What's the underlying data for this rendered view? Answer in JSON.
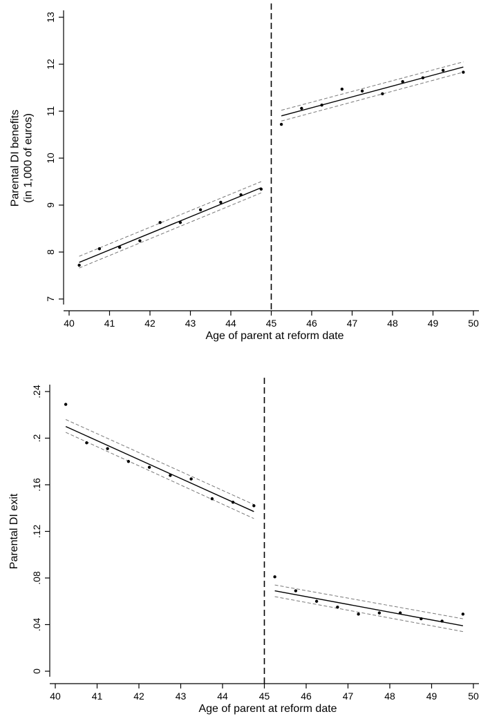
{
  "chart_data": [
    {
      "type": "scatter",
      "title": "",
      "xlabel": "Age of parent at reform date",
      "ylabel": [
        "Parental DI benefits",
        "(in 1,000 of euros)"
      ],
      "xlim": [
        40,
        50
      ],
      "ylim": [
        7,
        13
      ],
      "xticks": [
        40,
        41,
        42,
        43,
        44,
        45,
        46,
        47,
        48,
        49,
        50
      ],
      "xtick_labels": [
        "40",
        "41",
        "42",
        "43",
        "44",
        "45",
        "46",
        "47",
        "48",
        "49",
        "50"
      ],
      "yticks": [
        7,
        8,
        9,
        10,
        11,
        12,
        13
      ],
      "ytick_labels": [
        "7",
        "8",
        "9",
        "10",
        "11",
        "12",
        "13"
      ],
      "grid": false,
      "cutoff": 45,
      "points": {
        "x": [
          40.25,
          40.75,
          41.25,
          41.75,
          42.25,
          42.75,
          43.25,
          43.75,
          44.25,
          44.75,
          45.25,
          45.75,
          46.25,
          46.75,
          47.25,
          47.75,
          48.25,
          48.75,
          49.25,
          49.75
        ],
        "y": [
          7.72,
          8.07,
          8.1,
          8.24,
          8.63,
          8.63,
          8.9,
          9.06,
          9.22,
          9.34,
          10.72,
          11.06,
          11.13,
          11.47,
          11.43,
          11.37,
          11.63,
          11.71,
          11.87,
          11.83
        ]
      },
      "fits": [
        {
          "x": [
            40.25,
            44.75
          ],
          "y": [
            7.78,
            9.37
          ],
          "ci_lower": [
            7.66,
            9.26
          ],
          "ci_upper": [
            7.91,
            9.5
          ]
        },
        {
          "x": [
            45.25,
            49.75
          ],
          "y": [
            10.9,
            11.94
          ],
          "ci_lower": [
            10.79,
            11.83
          ],
          "ci_upper": [
            11.02,
            12.05
          ]
        }
      ]
    },
    {
      "type": "scatter",
      "title": "",
      "xlabel": "Age of parent at reform date",
      "ylabel": [
        "Parental DI exit"
      ],
      "xlim": [
        40,
        50
      ],
      "ylim": [
        0,
        0.24
      ],
      "xticks": [
        40,
        41,
        42,
        43,
        44,
        45,
        46,
        47,
        48,
        49,
        50
      ],
      "xtick_labels": [
        "40",
        "41",
        "42",
        "43",
        "44",
        "45",
        "46",
        "47",
        "48",
        "49",
        "50"
      ],
      "yticks": [
        0,
        0.04,
        0.08,
        0.12,
        0.16,
        0.2,
        0.24
      ],
      "ytick_labels": [
        "0",
        ".04",
        ".08",
        ".12",
        ".16",
        ".2",
        ".24"
      ],
      "grid": false,
      "cutoff": 45,
      "points": {
        "x": [
          40.25,
          40.75,
          41.25,
          41.75,
          42.25,
          42.75,
          43.25,
          43.75,
          44.25,
          44.75,
          45.25,
          45.75,
          46.25,
          46.75,
          47.25,
          47.75,
          48.25,
          48.75,
          49.25,
          49.75
        ],
        "y": [
          0.229,
          0.196,
          0.191,
          0.18,
          0.175,
          0.168,
          0.165,
          0.148,
          0.145,
          0.142,
          0.081,
          0.069,
          0.06,
          0.055,
          0.049,
          0.05,
          0.05,
          0.045,
          0.043,
          0.049
        ]
      },
      "fits": [
        {
          "x": [
            40.25,
            44.75
          ],
          "y": [
            0.21,
            0.137
          ],
          "ci_lower": [
            0.205,
            0.131
          ],
          "ci_upper": [
            0.216,
            0.143
          ]
        },
        {
          "x": [
            45.25,
            49.75
          ],
          "y": [
            0.069,
            0.039
          ],
          "ci_lower": [
            0.064,
            0.034
          ],
          "ci_upper": [
            0.074,
            0.045
          ]
        }
      ]
    }
  ]
}
